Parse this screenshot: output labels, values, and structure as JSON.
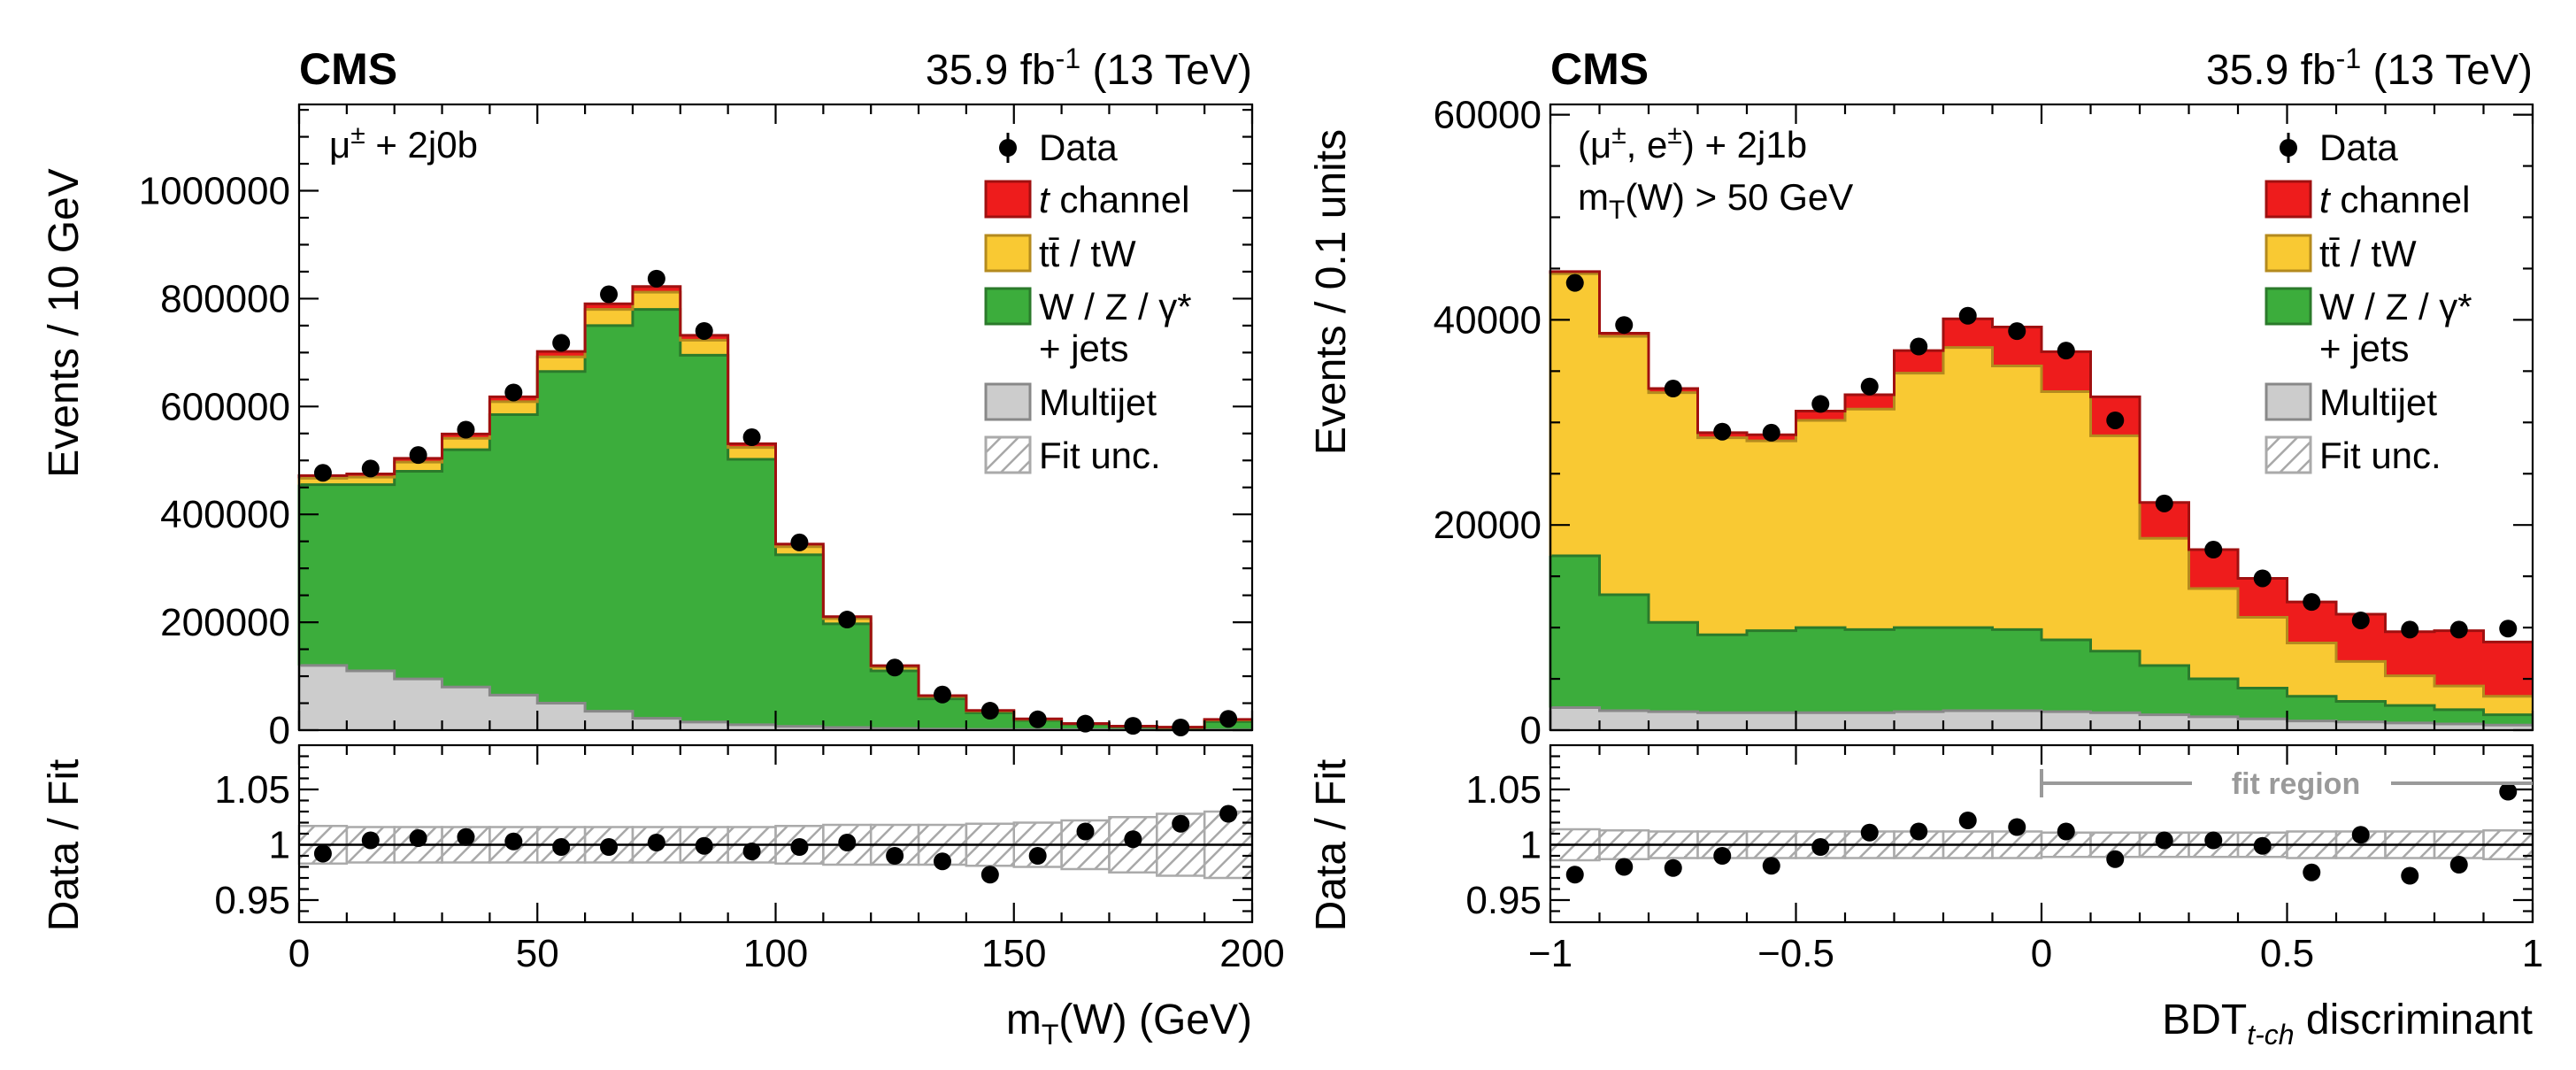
{
  "colors": {
    "tchannel": "#ee1c1c",
    "ttbar": "#f9c933",
    "wzjets": "#3cad3c",
    "multijet": "#cccccc",
    "edge_tchannel": "#a01010",
    "edge_ttbar": "#b48a1e",
    "edge_wzjets": "#2b7a2b",
    "edge_multijet": "#888888",
    "hatch": "#aaaaaa",
    "data": "#000000",
    "fit_region": "#9a9a9a"
  },
  "chart_data": [
    {
      "type": "stacked-histogram",
      "cms_label": "CMS",
      "lumi_label": "35.9 fb",
      "lumi_sup": "-1",
      "lumi_energy": " (13 TeV)",
      "category_label": "μ",
      "category_sup": "±",
      "category_rest": " + 2j0b",
      "extra_note": "",
      "ylabel": "Events / 10 GeV",
      "ratio_ylabel": "Data / Fit",
      "xlabel_main": "m",
      "xlabel_sub": "T",
      "xlabel_rest": "(W)  (GeV)",
      "xlim": [
        0,
        200
      ],
      "ylim": [
        0,
        1160000
      ],
      "yticks": [
        0,
        200000,
        400000,
        600000,
        800000,
        1000000
      ],
      "ytick_labels": [
        "0",
        "200000",
        "400000",
        "600000",
        "800000",
        "1000000"
      ],
      "xticks": [
        0,
        50,
        100,
        150,
        200
      ],
      "xtick_labels": [
        "0",
        "50",
        "100",
        "150",
        "200"
      ],
      "ratio_ylim": [
        0.93,
        1.09
      ],
      "ratio_yticks": [
        0.95,
        1.0,
        1.05
      ],
      "ratio_ytick_labels": [
        "0.95",
        "1",
        "1.05"
      ],
      "bin_edges": [
        0,
        10,
        20,
        30,
        40,
        50,
        60,
        70,
        80,
        90,
        100,
        110,
        120,
        130,
        140,
        150,
        160,
        170,
        180,
        190,
        200
      ],
      "series": [
        {
          "name": "Multijet",
          "key": "multijet",
          "values": [
            120000,
            110000,
            95000,
            80000,
            65000,
            50000,
            35000,
            22000,
            15000,
            10000,
            7000,
            5000,
            3000,
            2000,
            1500,
            1000,
            800,
            600,
            500,
            400
          ]
        },
        {
          "name": "W / Z / γ* + jets",
          "key": "wzjets",
          "values": [
            335000,
            345000,
            385000,
            440000,
            520000,
            615000,
            715000,
            758000,
            680000,
            492000,
            318000,
            192000,
            107000,
            56000,
            31000,
            17000,
            9500,
            5500,
            4000,
            15500
          ]
        },
        {
          "name": "tt̄ / tW",
          "key": "ttbar",
          "values": [
            12000,
            14000,
            17000,
            21000,
            24000,
            27000,
            30000,
            32000,
            28000,
            22000,
            15000,
            10000,
            7000,
            4500,
            3000,
            2200,
            1500,
            1000,
            800,
            3000
          ]
        },
        {
          "name": "t channel",
          "key": "tchannel",
          "values": [
            5000,
            6000,
            7000,
            8000,
            9000,
            10000,
            10500,
            10500,
            9000,
            7000,
            5000,
            3500,
            2500,
            1500,
            1000,
            700,
            500,
            300,
            200,
            1000
          ]
        }
      ],
      "data_points": [
        477000,
        485000,
        510000,
        557000,
        626000,
        718000,
        808000,
        837000,
        740000,
        543000,
        348000,
        205000,
        116000,
        66000,
        36000,
        20000,
        12000,
        8000,
        5000,
        21000
      ],
      "ratio_points": [
        0.992,
        1.004,
        1.006,
        1.007,
        1.003,
        0.998,
        0.998,
        1.002,
        0.999,
        0.994,
        0.998,
        1.002,
        0.99,
        0.985,
        0.973,
        0.99,
        1.012,
        1.005,
        1.019,
        1.028
      ],
      "unc_band": [
        0.017,
        0.016,
        0.016,
        0.016,
        0.016,
        0.016,
        0.016,
        0.016,
        0.016,
        0.016,
        0.017,
        0.018,
        0.018,
        0.018,
        0.019,
        0.02,
        0.022,
        0.025,
        0.028,
        0.03
      ],
      "legend": {
        "data": "Data",
        "tchannel_italic": "t",
        "tchannel_rest": " channel",
        "ttbar": "tt̄ / tW",
        "wzjets_l1": "W / Z / γ*",
        "wzjets_l2": "+ jets",
        "multijet": "Multijet",
        "fitunc": "Fit unc."
      },
      "fit_region_label": ""
    },
    {
      "type": "stacked-histogram",
      "cms_label": "CMS",
      "lumi_label": "35.9 fb",
      "lumi_sup": "-1",
      "lumi_energy": " (13 TeV)",
      "category_label": "(μ",
      "category_sup": "±",
      "category_rest": ", e",
      "category_sup2": "±",
      "category_rest2": ") + 2j1b",
      "extra_note_main": "m",
      "extra_note_sub": "T",
      "extra_note_rest": "(W) > 50 GeV",
      "ylabel": "Events / 0.1 units",
      "ratio_ylabel": "Data / Fit",
      "xlabel_main": "BDT",
      "xlabel_sub": "t-ch",
      "xlabel_rest": " discriminant",
      "xlim": [
        -1,
        1
      ],
      "ylim": [
        0,
        61000
      ],
      "yticks": [
        0,
        20000,
        40000,
        60000
      ],
      "ytick_labels": [
        "0",
        "20000",
        "40000",
        "60000"
      ],
      "xticks": [
        -1,
        -0.5,
        0,
        0.5,
        1
      ],
      "xtick_labels": [
        "−1",
        "−0.5",
        "0",
        "0.5",
        "1"
      ],
      "ratio_ylim": [
        0.93,
        1.09
      ],
      "ratio_yticks": [
        0.95,
        1.0,
        1.05
      ],
      "ratio_ytick_labels": [
        "0.95",
        "1",
        "1.05"
      ],
      "bin_edges": [
        -1.0,
        -0.9,
        -0.8,
        -0.7,
        -0.6,
        -0.5,
        -0.4,
        -0.3,
        -0.2,
        -0.1,
        0.0,
        0.1,
        0.2,
        0.3,
        0.4,
        0.5,
        0.6,
        0.7,
        0.8,
        0.9,
        1.0
      ],
      "series": [
        {
          "name": "Multijet",
          "key": "multijet",
          "values": [
            2200,
            1900,
            1800,
            1700,
            1700,
            1700,
            1700,
            1800,
            1900,
            1900,
            1800,
            1700,
            1500,
            1300,
            1100,
            900,
            800,
            700,
            600,
            500
          ]
        },
        {
          "name": "W / Z / γ* + jets",
          "key": "wzjets",
          "values": [
            14800,
            11300,
            8700,
            7600,
            8000,
            8300,
            8100,
            8200,
            8100,
            7900,
            7000,
            6000,
            4800,
            3700,
            3000,
            2400,
            2000,
            1700,
            1400,
            1000
          ]
        },
        {
          "name": "tt̄ / tW",
          "key": "ttbar",
          "values": [
            27500,
            25200,
            22400,
            19200,
            18500,
            20200,
            21500,
            24800,
            27300,
            25700,
            24200,
            21000,
            12400,
            8800,
            6900,
            5200,
            3900,
            2900,
            2300,
            1800
          ]
        },
        {
          "name": "t channel",
          "key": "tchannel",
          "values": [
            200,
            300,
            400,
            500,
            600,
            900,
            1400,
            2200,
            2800,
            3800,
            3900,
            3800,
            3500,
            3800,
            3800,
            4000,
            4600,
            4300,
            5400,
            5300
          ]
        }
      ],
      "data_points": [
        43600,
        39500,
        33300,
        29100,
        29000,
        31800,
        33500,
        37400,
        40400,
        38900,
        37000,
        30200,
        22100,
        17600,
        14800,
        12500,
        10700,
        9800,
        9800,
        9900
      ],
      "ratio_points": [
        0.973,
        0.98,
        0.979,
        0.99,
        0.981,
        0.998,
        1.011,
        1.012,
        1.022,
        1.016,
        1.012,
        0.987,
        1.004,
        1.004,
        0.999,
        0.975,
        1.009,
        0.972,
        0.982,
        1.048
      ],
      "unc_band": [
        0.014,
        0.013,
        0.012,
        0.012,
        0.012,
        0.012,
        0.012,
        0.012,
        0.012,
        0.012,
        0.011,
        0.011,
        0.011,
        0.011,
        0.011,
        0.012,
        0.012,
        0.012,
        0.012,
        0.013
      ],
      "legend": {
        "data": "Data",
        "tchannel_italic": "t",
        "tchannel_rest": " channel",
        "ttbar": "tt̄ / tW",
        "wzjets_l1": "W / Z / γ*",
        "wzjets_l2": "+ jets",
        "multijet": "Multijet",
        "fitunc": "Fit unc."
      },
      "fit_region_label": "fit region",
      "fit_region_start": 0.0
    }
  ]
}
